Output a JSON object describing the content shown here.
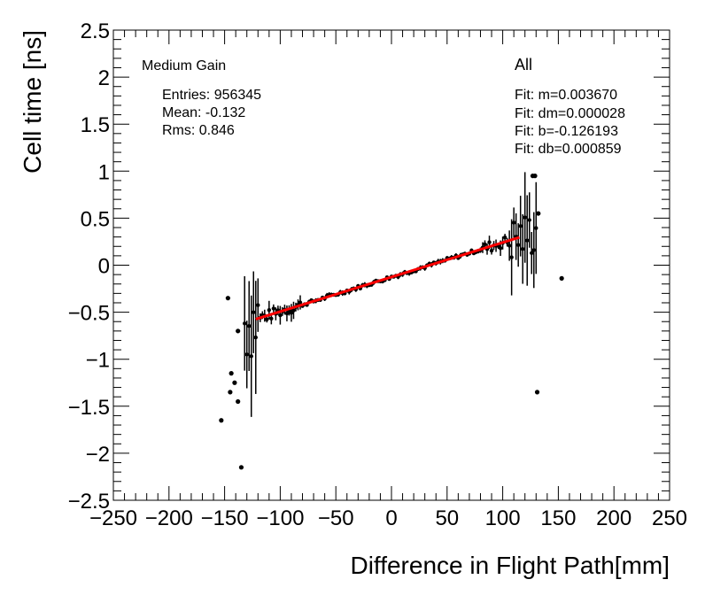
{
  "chart_data": {
    "type": "scatter",
    "title": "Medium Gain",
    "category": "All",
    "xlabel": "Difference in Flight Path[mm]",
    "ylabel": "Cell time [ns]",
    "xlim": [
      -250,
      250
    ],
    "ylim": [
      -2.5,
      2.5
    ],
    "x_ticks": [
      -250,
      -200,
      -150,
      -100,
      -50,
      0,
      50,
      100,
      150,
      200,
      250
    ],
    "x_tick_labels": [
      "−250",
      "−200",
      "−150",
      "−100",
      "−50",
      "0",
      "50",
      "100",
      "150",
      "200",
      "250"
    ],
    "y_ticks": [
      -2.5,
      -2,
      -1.5,
      -1,
      -0.5,
      0,
      0.5,
      1,
      1.5,
      2,
      2.5
    ],
    "y_tick_labels": [
      "−2.5",
      "−2",
      "−1.5",
      "−1",
      "−0.5",
      "0",
      "0.5",
      "1",
      "1.5",
      "2",
      "2.5"
    ],
    "stats": {
      "entries": "Entries: 956345",
      "mean": "Mean: -0.132",
      "rms": "Rms: 0.846"
    },
    "fit": {
      "m_label": "Fit: m=0.003670",
      "dm_label": "Fit: dm=0.000028",
      "b_label": "Fit: b=-0.126193",
      "db_label": "Fit: db=0.000859",
      "m": 0.00367,
      "b": -0.126193,
      "x_range": [
        -122,
        115
      ],
      "color": "#ff0000"
    },
    "outliers": [
      {
        "x": -153,
        "y": -1.65
      },
      {
        "x": -147,
        "y": -0.35
      },
      {
        "x": -145,
        "y": -1.35
      },
      {
        "x": -144,
        "y": -1.15
      },
      {
        "x": -141,
        "y": -1.25
      },
      {
        "x": -138,
        "y": -1.45
      },
      {
        "x": -135,
        "y": -2.15
      },
      {
        "x": -138,
        "y": -0.7
      },
      {
        "x": 127,
        "y": 0.95
      },
      {
        "x": 129,
        "y": 0.95
      },
      {
        "x": 132,
        "y": 0.55
      },
      {
        "x": 131,
        "y": -1.35
      },
      {
        "x": 153,
        "y": -0.14
      }
    ],
    "point_color": "#000000"
  }
}
